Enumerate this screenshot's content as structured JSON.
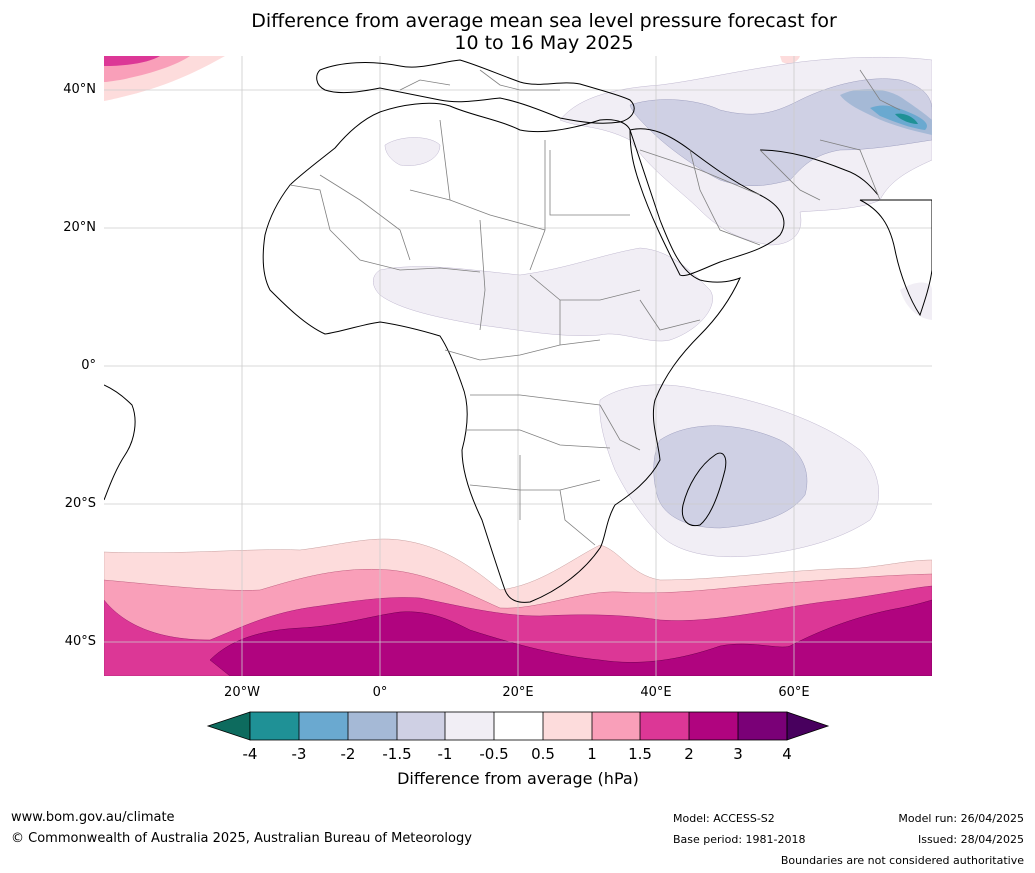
{
  "title": {
    "line1": "Difference from average mean sea level pressure forecast for",
    "line2": "10 to 16 May 2025"
  },
  "map_axes": {
    "lat_labels": [
      "40°N",
      "20°N",
      "0°",
      "20°S",
      "40°S"
    ],
    "lon_labels": [
      "20°W",
      "0°",
      "20°E",
      "40°E",
      "60°E"
    ]
  },
  "colorbar": {
    "ticks": [
      "-4",
      "-3",
      "-2",
      "-1.5",
      "-1",
      "-0.5",
      "0.5",
      "1",
      "1.5",
      "2",
      "3",
      "4"
    ],
    "colors": [
      "#0d6b5e",
      "#1f9196",
      "#6aa9d0",
      "#a5b9d6",
      "#cfd0e4",
      "#f1eef5",
      "#ffffff",
      "#fddcdc",
      "#f99fb9",
      "#dc3796",
      "#b0047f",
      "#7a0077",
      "#48005e"
    ],
    "label": "Difference from average (hPa)"
  },
  "footer": {
    "website": "www.bom.gov.au/climate",
    "copyright": "© Commonwealth of Australia 2025, Australian Bureau of Meteorology",
    "model": "Model: ACCESS-S2",
    "base_period": "Base period: 1981-2018",
    "model_run": "Model run: 26/04/2025",
    "issued": "Issued: 28/04/2025",
    "disclaimer": "Boundaries are not considered authoritative"
  },
  "icons": [
    "colorbar-arrow-left-icon",
    "colorbar-arrow-right-icon"
  ]
}
